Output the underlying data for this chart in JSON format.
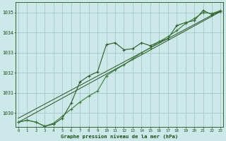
{
  "bg_color": "#cce8e8",
  "grid_color": "#aacccc",
  "line_color_dark": "#2d5a2d",
  "line_color_mid": "#3a7a3a",
  "title": "Graphe pression niveau de la mer (hPa)",
  "title_color": "#1a4d1a",
  "ylim": [
    1029.3,
    1035.5
  ],
  "yticks": [
    1030,
    1031,
    1032,
    1033,
    1034,
    1035
  ],
  "xlim": [
    -0.3,
    23.3
  ],
  "xticks": [
    0,
    1,
    2,
    3,
    4,
    5,
    6,
    7,
    8,
    9,
    10,
    11,
    12,
    13,
    14,
    15,
    16,
    17,
    18,
    19,
    20,
    21,
    22,
    23
  ],
  "series_linear": {
    "x": [
      0,
      23
    ],
    "y": [
      1029.55,
      1035.05
    ]
  },
  "series_linear2": {
    "x": [
      0,
      23
    ],
    "y": [
      1029.75,
      1035.1
    ]
  },
  "series_jagged1": {
    "x": [
      0,
      1,
      2,
      3,
      4,
      5,
      6,
      7,
      8,
      9,
      10,
      11,
      12,
      13,
      14,
      15,
      16,
      17,
      18,
      19,
      20,
      21,
      22,
      23
    ],
    "y": [
      1029.55,
      1029.65,
      1029.55,
      1029.35,
      1029.45,
      1029.75,
      1030.5,
      1031.55,
      1031.85,
      1032.05,
      1033.4,
      1033.5,
      1033.15,
      1033.2,
      1033.5,
      1033.35,
      1033.55,
      1033.7,
      1034.35,
      1034.5,
      1034.6,
      1035.1,
      1034.9,
      1035.05
    ]
  },
  "series_jagged2": {
    "x": [
      0,
      1,
      2,
      3,
      4,
      5,
      6,
      7,
      8,
      9,
      10,
      11,
      12,
      13,
      14,
      15,
      16,
      17,
      18,
      19,
      20,
      21,
      22,
      23
    ],
    "y": [
      1029.55,
      1029.65,
      1029.55,
      1029.35,
      1029.5,
      1029.85,
      1030.2,
      1030.55,
      1030.85,
      1031.1,
      1031.85,
      1032.15,
      1032.4,
      1032.7,
      1033.0,
      1033.25,
      1033.55,
      1033.8,
      1034.1,
      1034.45,
      1034.7,
      1035.0,
      1034.95,
      1035.1
    ]
  }
}
